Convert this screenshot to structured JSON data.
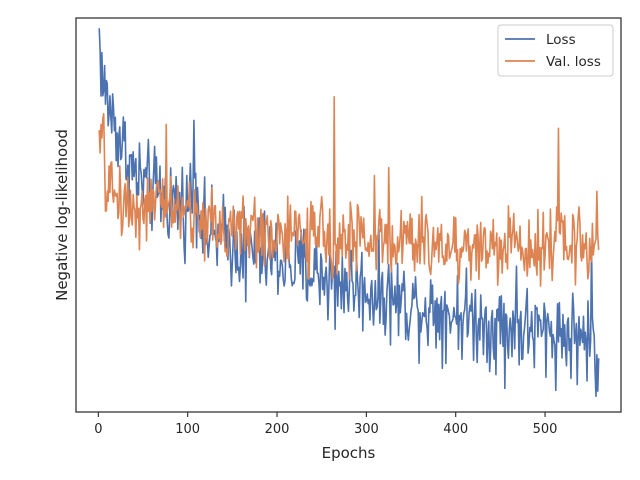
{
  "chart_data": {
    "type": "line",
    "title": "",
    "xlabel": "Epochs",
    "ylabel": "Negative log-likelihood",
    "xlim": [
      -25,
      585
    ],
    "ylim": [
      0.0,
      1.0
    ],
    "y_ticks_shown": false,
    "x_ticks": [
      0,
      100,
      200,
      300,
      400,
      500
    ],
    "x_tick_labels": [
      "0",
      "100",
      "200",
      "300",
      "400",
      "500"
    ],
    "grid": false,
    "legend": "top-right",
    "n_points": 560,
    "series": [
      {
        "name": "Loss",
        "color": "#4c72b0",
        "anchors_x": [
          1,
          5,
          10,
          20,
          30,
          40,
          60,
          80,
          100,
          107,
          120,
          140,
          160,
          180,
          200,
          220,
          240,
          260,
          280,
          300,
          320,
          340,
          360,
          380,
          400,
          420,
          440,
          460,
          480,
          500,
          520,
          540,
          555,
          560
        ],
        "anchors_y": [
          0.955,
          0.83,
          0.79,
          0.72,
          0.66,
          0.6,
          0.56,
          0.54,
          0.52,
          0.6,
          0.45,
          0.44,
          0.42,
          0.4,
          0.39,
          0.37,
          0.36,
          0.34,
          0.33,
          0.31,
          0.3,
          0.28,
          0.27,
          0.26,
          0.25,
          0.24,
          0.22,
          0.22,
          0.21,
          0.2,
          0.2,
          0.19,
          0.18,
          0.06
        ],
        "noise": 0.055,
        "spikes": [
          {
            "x": 107,
            "y": 0.74
          },
          {
            "x": 165,
            "y": 0.28
          },
          {
            "x": 265,
            "y": 0.21
          },
          {
            "x": 455,
            "y": 0.06
          },
          {
            "x": 468,
            "y": 0.37
          },
          {
            "x": 552,
            "y": 0.42
          },
          {
            "x": 557,
            "y": 0.04
          }
        ]
      },
      {
        "name": "Val. loss",
        "color": "#dd8452",
        "anchors_x": [
          1,
          5,
          8,
          20,
          40,
          60,
          80,
          100,
          140,
          200,
          260,
          300,
          360,
          400,
          450,
          500,
          540,
          560
        ],
        "anchors_y": [
          0.65,
          0.7,
          0.58,
          0.55,
          0.52,
          0.52,
          0.53,
          0.5,
          0.47,
          0.45,
          0.44,
          0.44,
          0.43,
          0.42,
          0.42,
          0.43,
          0.43,
          0.42
        ],
        "noise": 0.045,
        "spikes": [
          {
            "x": 3,
            "y": 0.73
          },
          {
            "x": 76,
            "y": 0.73
          },
          {
            "x": 264,
            "y": 0.8
          },
          {
            "x": 309,
            "y": 0.6
          },
          {
            "x": 325,
            "y": 0.62
          },
          {
            "x": 515,
            "y": 0.72
          },
          {
            "x": 558,
            "y": 0.56
          }
        ]
      }
    ]
  }
}
